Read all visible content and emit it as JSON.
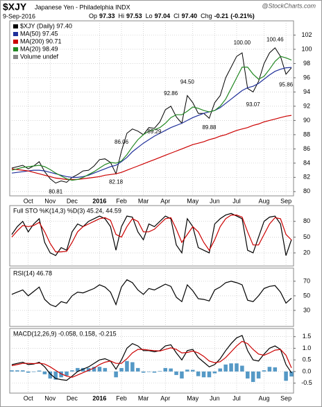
{
  "header": {
    "symbol": "$XJY",
    "name": "Japanese Yen - Philadelphia INDX",
    "date": "9-Sep-2016",
    "watermark": "@StockCharts.com",
    "quote": [
      {
        "name": "Op",
        "value": 97.33
      },
      {
        "name": "Hi",
        "value": 97.53
      },
      {
        "name": "Lo",
        "value": 97.04
      },
      {
        "name": "Cl",
        "value": 97.4,
        "label": "97.40"
      },
      {
        "name": "Chg",
        "value": -0.21
      }
    ],
    "change_pct": {
      "value": -0.21,
      "label": "(-0.21%)"
    }
  },
  "chart_data": [
    {
      "type": "line",
      "legend": "top-left",
      "grid": true,
      "legend_extra": "Volume undef",
      "categories": [
        null,
        null,
        null,
        "Oct",
        null,
        null,
        null,
        "Nov",
        null,
        null,
        null,
        "Dec",
        null,
        null,
        null,
        null,
        "2016",
        null,
        null,
        null,
        "Feb",
        null,
        null,
        null,
        "Mar",
        null,
        null,
        null,
        "Apr",
        null,
        null,
        null,
        null,
        "May",
        null,
        null,
        null,
        "Jun",
        null,
        null,
        null,
        "Jul",
        null,
        null,
        null,
        null,
        "Aug",
        null,
        null,
        null,
        "Sep",
        null
      ],
      "ylim": [
        79.4,
        104
      ],
      "yticks": [
        80,
        82,
        84,
        86,
        88,
        90,
        92,
        94,
        96,
        98,
        100,
        102
      ],
      "series": [
        {
          "name": "$XJY (Daily) 97.40",
          "color": "#000000",
          "values": [
            83.3,
            83.5,
            83.7,
            83.2,
            83.6,
            84.2,
            82.8,
            81.8,
            81.2,
            81.5,
            81.3,
            82.0,
            82.4,
            82.9,
            83.0,
            83.6,
            84.5,
            84.6,
            84.1,
            82.5,
            85.7,
            88.2,
            88.8,
            88.5,
            88.0,
            89.0,
            88.9,
            89.8,
            91.5,
            92.0,
            90.5,
            89.6,
            93.5,
            92.5,
            91.0,
            91.0,
            90.3,
            92.5,
            93.5,
            96.0,
            97.5,
            99.0,
            99.5,
            94.5,
            94.0,
            95.5,
            98.0,
            99.5,
            100.2,
            99.0,
            96.5,
            97.4
          ]
        },
        {
          "name": "MA(50) 97.45",
          "color": "#1f2f9a",
          "values": [
            82.6,
            82.7,
            82.8,
            82.9,
            83.0,
            83.0,
            82.9,
            82.7,
            82.5,
            82.3,
            82.1,
            82.0,
            82.0,
            82.1,
            82.3,
            82.6,
            82.9,
            83.2,
            83.5,
            83.7,
            84.2,
            84.8,
            85.6,
            86.2,
            86.8,
            87.3,
            87.8,
            88.2,
            88.6,
            89.0,
            89.3,
            89.6,
            90.0,
            90.4,
            90.7,
            91.0,
            91.2,
            91.4,
            91.8,
            92.4,
            93.0,
            93.6,
            94.2,
            94.6,
            94.8,
            95.2,
            95.8,
            96.4,
            96.9,
            97.2,
            97.4,
            97.45
          ]
        },
        {
          "name": "MA(200) 90.71",
          "color": "#cc0000",
          "values": [
            83.2,
            83.1,
            83.0,
            82.9,
            82.7,
            82.5,
            82.3,
            82.1,
            81.9,
            81.8,
            81.7,
            81.7,
            81.7,
            81.8,
            81.9,
            82.0,
            82.1,
            82.3,
            82.4,
            82.5,
            82.7,
            83.0,
            83.3,
            83.6,
            83.9,
            84.2,
            84.5,
            84.8,
            85.1,
            85.4,
            85.7,
            86.0,
            86.3,
            86.6,
            86.8,
            87.0,
            87.3,
            87.5,
            87.8,
            88.0,
            88.3,
            88.6,
            88.8,
            89.0,
            89.3,
            89.5,
            89.8,
            90.0,
            90.2,
            90.4,
            90.6,
            90.71
          ]
        },
        {
          "name": "MA(20) 98.49",
          "color": "#228822",
          "values": [
            83.0,
            83.2,
            83.4,
            83.5,
            83.6,
            83.7,
            83.5,
            83.1,
            82.6,
            82.2,
            81.8,
            81.6,
            81.7,
            82.0,
            82.4,
            82.8,
            83.3,
            83.8,
            84.1,
            84.0,
            84.3,
            85.2,
            86.3,
            87.3,
            88.0,
            88.5,
            88.7,
            89.0,
            89.6,
            90.4,
            90.8,
            90.8,
            91.3,
            91.9,
            91.7,
            91.4,
            91.2,
            91.4,
            92.0,
            93.0,
            94.5,
            96.0,
            97.5,
            97.5,
            96.5,
            95.8,
            96.2,
            97.2,
            98.3,
            99.0,
            98.8,
            98.49
          ]
        }
      ],
      "annotations": [
        80.81,
        82.18,
        86.06,
        89.29,
        92.86,
        {
          "value": 94.5,
          "label": "94.50"
        },
        89.88,
        93.07,
        {
          "value": 100,
          "label": "100.00"
        },
        100.46,
        95.86
      ]
    },
    {
      "type": "line",
      "title": "Full STO %K(14,3) %D(3) 45.24, 44.59",
      "grid": true,
      "ylim": [
        -5,
        110
      ],
      "yticks": [
        20,
        50,
        80
      ],
      "series": [
        {
          "name": "%K",
          "color": "#000000",
          "values": [
            55,
            70,
            80,
            60,
            75,
            85,
            40,
            20,
            15,
            30,
            25,
            60,
            75,
            70,
            80,
            85,
            90,
            85,
            70,
            25,
            70,
            90,
            88,
            60,
            45,
            75,
            70,
            80,
            90,
            85,
            35,
            20,
            85,
            70,
            30,
            25,
            20,
            75,
            85,
            92,
            95,
            90,
            85,
            25,
            20,
            50,
            80,
            88,
            90,
            75,
            15,
            45.24
          ]
        },
        {
          "name": "%D",
          "color": "#cc0000",
          "values": [
            50,
            62,
            72,
            70,
            72,
            78,
            60,
            38,
            22,
            22,
            23,
            40,
            60,
            70,
            75,
            80,
            85,
            87,
            82,
            55,
            50,
            70,
            85,
            80,
            60,
            60,
            65,
            75,
            85,
            87,
            65,
            40,
            55,
            70,
            60,
            40,
            25,
            45,
            70,
            85,
            92,
            92,
            88,
            60,
            35,
            35,
            55,
            75,
            87,
            85,
            55,
            44.59
          ]
        }
      ]
    },
    {
      "type": "line",
      "title": "RSI(14) 46.78",
      "grid": true,
      "ylim": [
        8,
        88
      ],
      "yticks": [
        30,
        50,
        70
      ],
      "series": [
        {
          "name": "RSI(14)",
          "color": "#000000",
          "values": [
            52,
            55,
            58,
            50,
            56,
            62,
            45,
            38,
            35,
            42,
            40,
            50,
            55,
            54,
            57,
            60,
            65,
            62,
            55,
            38,
            62,
            72,
            68,
            58,
            52,
            60,
            58,
            62,
            66,
            63,
            48,
            42,
            65,
            57,
            46,
            45,
            43,
            58,
            62,
            68,
            70,
            68,
            65,
            44,
            42,
            50,
            60,
            63,
            64,
            55,
            40,
            46.78
          ]
        }
      ]
    },
    {
      "type": "line",
      "title": "MACD(12,26,9) -0.058, 0.158, -0.215",
      "grid": true,
      "categories": [
        null,
        null,
        null,
        "Oct",
        null,
        null,
        null,
        "Nov",
        null,
        null,
        null,
        "Dec",
        null,
        null,
        null,
        null,
        "2016",
        null,
        null,
        null,
        "Feb",
        null,
        null,
        null,
        "Mar",
        null,
        null,
        null,
        "Apr",
        null,
        null,
        null,
        null,
        "May",
        null,
        null,
        null,
        "Jun",
        null,
        null,
        null,
        "Jul",
        null,
        null,
        null,
        null,
        "Aug",
        null,
        null,
        null,
        "Sep",
        null
      ],
      "ylim": [
        -0.93,
        1.85
      ],
      "yticks": [
        -0.5,
        {
          "value": 0,
          "label": "0.0"
        },
        0.5,
        {
          "value": 1,
          "label": "1.0"
        },
        1.5
      ],
      "series": [
        {
          "name": "Histogram",
          "kind": "bar",
          "color": "#2a7fb8",
          "values": [
            0.05,
            0.05,
            0.05,
            -0.05,
            -0.02,
            0.04,
            -0.12,
            -0.3,
            -0.35,
            -0.25,
            -0.18,
            0.05,
            0.15,
            0.15,
            0.15,
            0.2,
            0.2,
            0.15,
            0.0,
            -0.25,
            0.15,
            0.45,
            0.4,
            0.15,
            -0.05,
            -0.02,
            -0.05,
            0.02,
            0.15,
            0.13,
            -0.15,
            -0.3,
            0.08,
            0.07,
            -0.2,
            -0.25,
            -0.25,
            -0.08,
            0.13,
            0.3,
            0.35,
            0.35,
            0.25,
            -0.3,
            -0.45,
            -0.3,
            0.05,
            0.2,
            0.18,
            0.0,
            -0.4,
            -0.215
          ]
        },
        {
          "name": "MACD",
          "color": "#000000",
          "values": [
            0.3,
            0.35,
            0.4,
            0.3,
            0.32,
            0.4,
            0.2,
            -0.1,
            -0.3,
            -0.35,
            -0.38,
            -0.2,
            0.0,
            0.1,
            0.2,
            0.35,
            0.5,
            0.55,
            0.45,
            0.1,
            0.5,
            1.0,
            1.2,
            1.1,
            0.9,
            0.9,
            0.85,
            0.9,
            1.1,
            1.15,
            0.8,
            0.5,
            0.9,
            0.95,
            0.6,
            0.4,
            0.2,
            0.3,
            0.55,
            0.9,
            1.2,
            1.45,
            1.55,
            0.9,
            0.5,
            0.45,
            0.75,
            1.0,
            1.1,
            0.95,
            0.3,
            -0.058
          ]
        },
        {
          "name": "Signal",
          "color": "#cc0000",
          "values": [
            0.25,
            0.3,
            0.35,
            0.35,
            0.34,
            0.36,
            0.32,
            0.2,
            0.05,
            -0.1,
            -0.2,
            -0.25,
            -0.15,
            -0.05,
            0.05,
            0.15,
            0.3,
            0.4,
            0.45,
            0.35,
            0.35,
            0.55,
            0.8,
            0.95,
            0.95,
            0.92,
            0.9,
            0.88,
            0.95,
            1.02,
            0.95,
            0.8,
            0.82,
            0.88,
            0.8,
            0.65,
            0.45,
            0.38,
            0.42,
            0.6,
            0.85,
            1.1,
            1.3,
            1.2,
            0.95,
            0.75,
            0.7,
            0.8,
            0.92,
            0.95,
            0.7,
            0.158
          ]
        }
      ]
    }
  ]
}
